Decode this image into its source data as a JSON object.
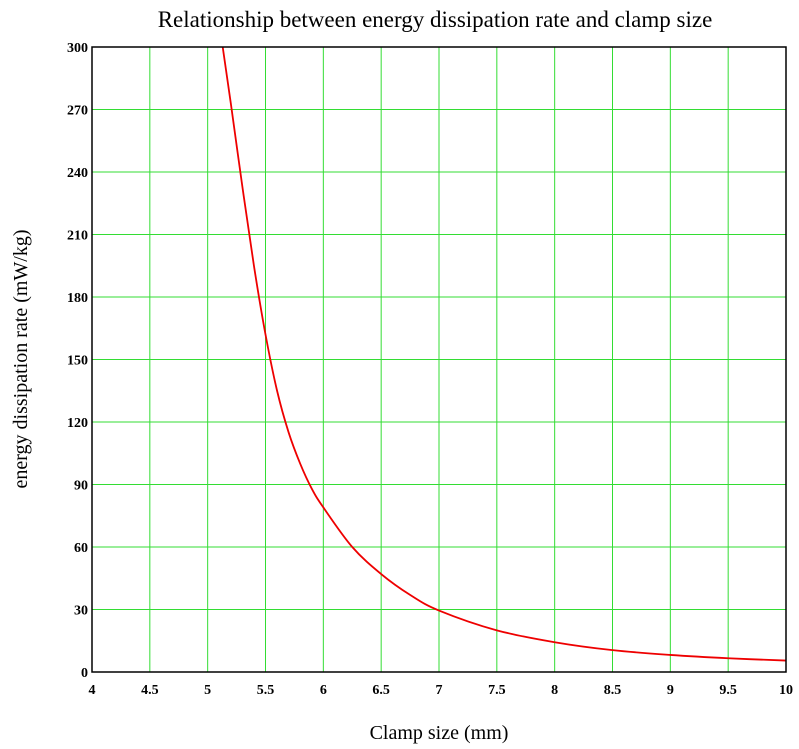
{
  "chart_data": {
    "type": "line",
    "title": "Relationship between energy dissipation rate and clamp size",
    "xlabel": "Clamp size (mm)",
    "ylabel": "energy dissipation rate (mW/kg)",
    "xlim": [
      4,
      10
    ],
    "ylim": [
      0,
      300
    ],
    "x_ticks": [
      "4",
      "4.5",
      "5",
      "5.5",
      "6",
      "6.5",
      "7",
      "7.5",
      "8",
      "8.5",
      "9",
      "9.5",
      "10"
    ],
    "y_ticks": [
      "0",
      "30",
      "60",
      "90",
      "120",
      "150",
      "180",
      "210",
      "240",
      "270",
      "300"
    ],
    "grid": true,
    "colors": {
      "series": "#ee0000",
      "grid": "#33dd33",
      "axis": "#000000"
    },
    "series": [
      {
        "x": [
          5.13,
          5.2,
          5.3,
          5.4,
          5.5,
          5.6,
          5.7,
          5.8,
          5.9,
          6.0,
          6.25,
          6.5,
          6.75,
          7.0,
          7.5,
          8.0,
          8.5,
          9.0,
          9.5,
          10.0
        ],
        "values": [
          300,
          273,
          233,
          195,
          162,
          135,
          115,
          100,
          88,
          79,
          60,
          47,
          37,
          29.5,
          20,
          14.3,
          10.5,
          8.2,
          6.6,
          5.5
        ]
      }
    ]
  }
}
